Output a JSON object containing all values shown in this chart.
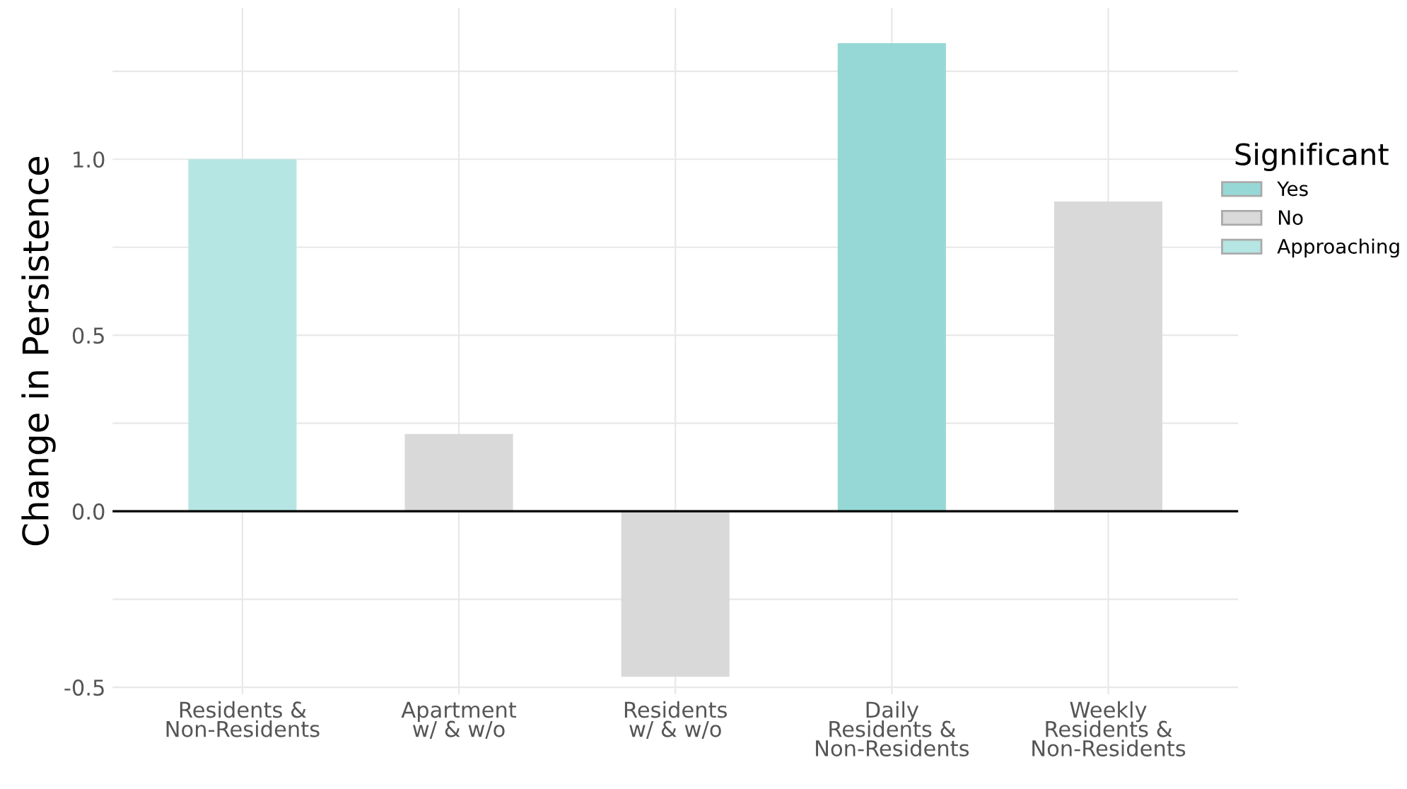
{
  "chart_data": {
    "type": "bar",
    "ylabel": "Change in Persistence",
    "legend_title": "Significant",
    "categories": [
      "Residents &\nNon-Residents",
      "Apartment\nw/ & w/o",
      "Residents\nw/ & w/o",
      "Daily\nResidents &\nNon-Residents",
      "Weekly\nResidents &\nNon-Residents"
    ],
    "series": [
      {
        "name": "Yes",
        "color": "#96d8d5",
        "values": [
          null,
          null,
          null,
          1.33,
          null
        ]
      },
      {
        "name": "No",
        "color": "#d9d9d9",
        "values": [
          null,
          0.22,
          -0.47,
          null,
          0.88
        ]
      },
      {
        "name": "Approaching",
        "color": "#b5e6e3",
        "values": [
          1.0,
          null,
          null,
          null,
          null
        ]
      }
    ],
    "ylim": [
      -0.52,
      1.43
    ],
    "yticks": [
      {
        "value": -0.5,
        "label": "-0.5"
      },
      {
        "value": -0.25,
        "label": null
      },
      {
        "value": 0,
        "label": "0.0"
      },
      {
        "value": 0.25,
        "label": null
      },
      {
        "value": 0.5,
        "label": "0.5"
      },
      {
        "value": 0.75,
        "label": null
      },
      {
        "value": 1,
        "label": "1.0"
      },
      {
        "value": 1.25,
        "label": null
      }
    ],
    "ref_lines": [
      {
        "axis": "y",
        "value": 0,
        "color": "#000000"
      }
    ],
    "grid": true,
    "legend": "right"
  }
}
